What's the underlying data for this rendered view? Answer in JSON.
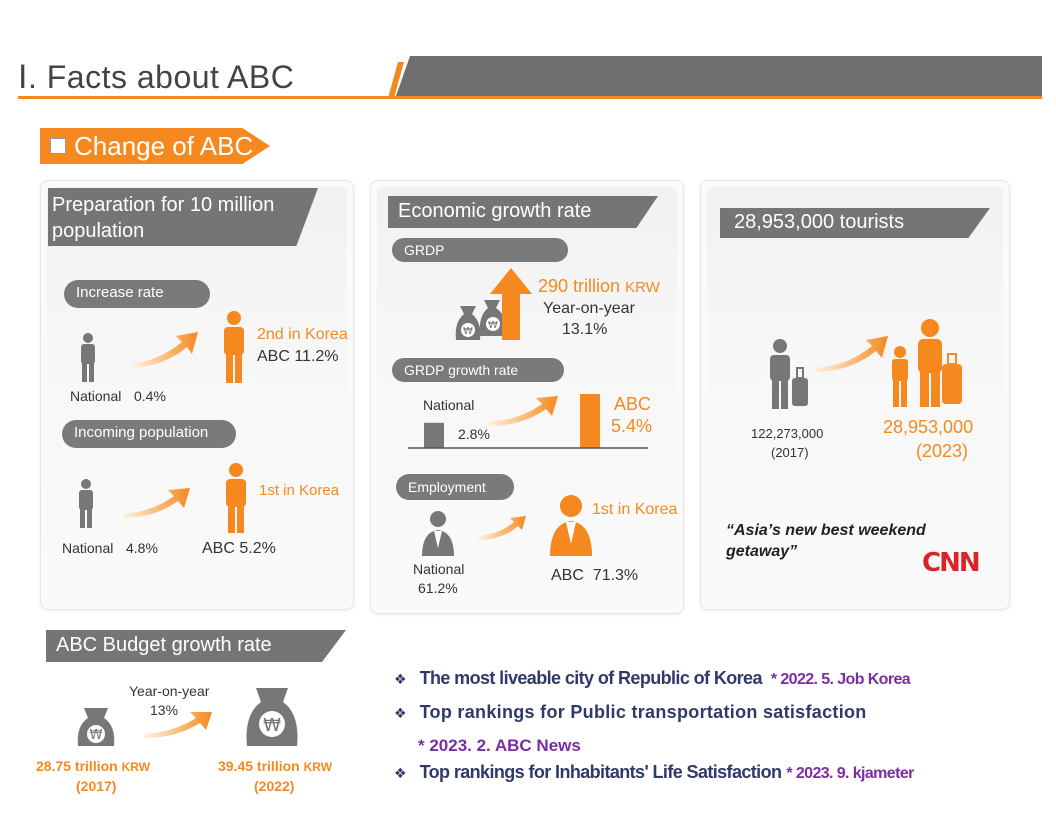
{
  "header": {
    "title": "Ⅰ. Facts about ABC"
  },
  "section": {
    "label": "Change of ABC"
  },
  "population": {
    "title_line1": "Preparation for 10 million",
    "title_line2": "population",
    "increase_label": "Increase rate",
    "increase_national": "National",
    "increase_national_value": "0.4%",
    "increase_rank": "2nd in Korea",
    "increase_abc": "ABC 11.2%",
    "incoming_label": "Incoming population",
    "incoming_national": "National",
    "incoming_national_value": "4.8%",
    "incoming_rank": "1st in Korea",
    "incoming_abc": "ABC 5.2%"
  },
  "economy": {
    "title": "Economic growth rate",
    "grdp_label": "GRDP",
    "grdp_value": "290 trillion",
    "grdp_unit": "KRW",
    "grdp_yoy_label": "Year-on-year",
    "grdp_yoy_value": "13.1%",
    "growth_label": "GRDP growth rate",
    "growth_national": "National",
    "growth_national_value": "2.8%",
    "growth_national_num": 2.8,
    "growth_abc_label": "ABC",
    "growth_abc_value": "5.4%",
    "growth_abc_num": 5.4,
    "employment_label": "Employment",
    "employment_national": "National",
    "employment_national_value": "61.2%",
    "employment_rank": "1st in Korea",
    "employment_abc": "ABC  71.3%"
  },
  "tourism": {
    "title": "28,953,000 tourists",
    "before_value": "122,273,000",
    "before_year": "(2017)",
    "after_value": "28,953,000",
    "after_year": "(2023)",
    "quote_line1": "“Asia’s new best weekend",
    "quote_line2": "getaway”",
    "source_logo": "CNN"
  },
  "budget": {
    "title": "ABC Budget growth rate",
    "yoy_label": "Year-on-year",
    "yoy_value": "13%",
    "before_value": "28.75 trillion",
    "before_unit": "KRW",
    "before_year": "(2017)",
    "after_value": "39.45 trillion",
    "after_unit": "KRW",
    "after_year": "(2022)"
  },
  "facts": {
    "bullet_symbol": "❖",
    "item1_text": "The most liveable city of Republic of Korea",
    "item1_source": "* 2022. 5. Job Korea",
    "item2_text": "Top rankings for Public transportation satisfaction",
    "item2_source_prefix": "* 2023. 2.",
    "item2_source_name": "ABC News",
    "item3_text": "Top rankings for Inhabitants' Life Satisfaction",
    "item3_source": "* 2023. 9. kjameter"
  },
  "colors": {
    "accent": "#f5891f",
    "gray": "#757575",
    "navy": "#2f3a6a",
    "purple": "#7a2ea0",
    "cnn": "#d6252b"
  }
}
